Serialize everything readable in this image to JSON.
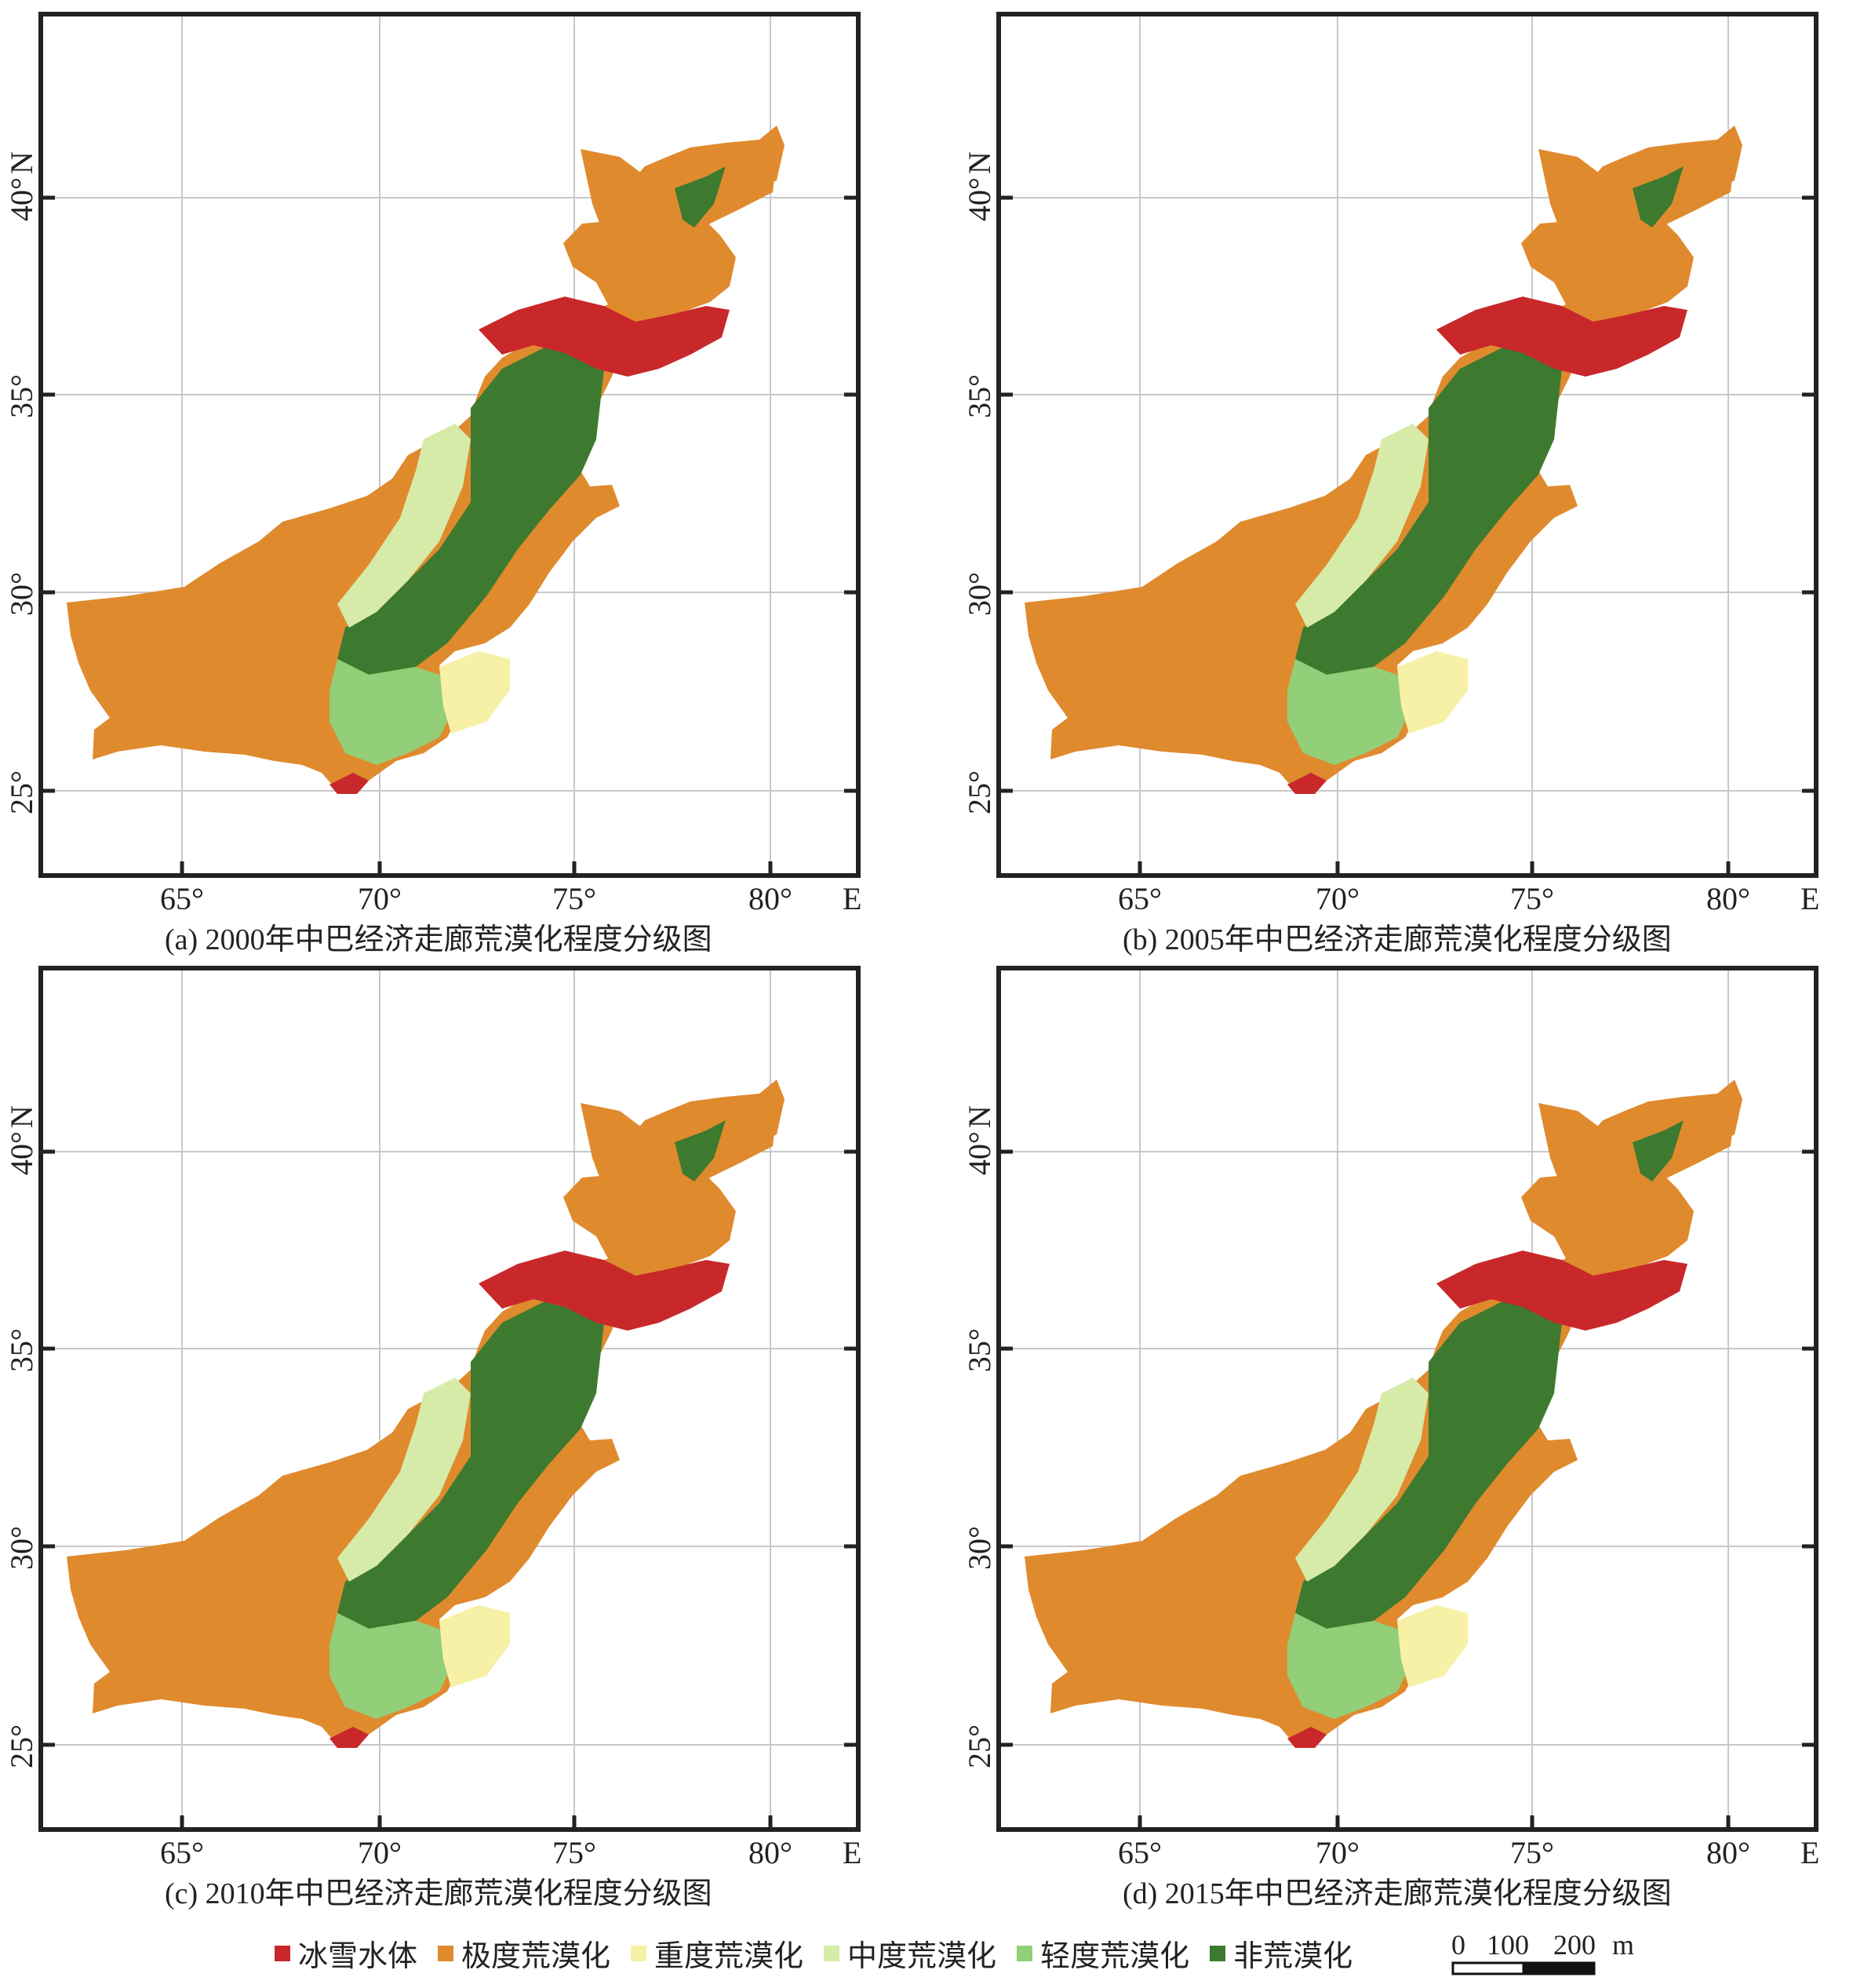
{
  "panels": [
    {
      "caption": "(a) 2000年中巴经济走廊荒漠化程度分级图"
    },
    {
      "caption": "(b) 2005年中巴经济走廊荒漠化程度分级图"
    },
    {
      "caption": "(c) 2010年中巴经济走廊荒漠化程度分级图"
    },
    {
      "caption": "(d) 2015年中巴经济走廊荒漠化程度分级图"
    }
  ],
  "axes": {
    "x_ticks": [
      "65°",
      "70°",
      "75°",
      "80°"
    ],
    "x_unit": "E",
    "y_ticks": [
      "25°",
      "30°",
      "35°",
      "40°"
    ],
    "y_unit": "N"
  },
  "legend": [
    {
      "label": "冰雪水体",
      "color": "#c8282a"
    },
    {
      "label": "极度荒漠化",
      "color": "#e08a2e"
    },
    {
      "label": "重度荒漠化",
      "color": "#f7f1a8"
    },
    {
      "label": "中度荒漠化",
      "color": "#d6eba8"
    },
    {
      "label": "轻度荒漠化",
      "color": "#93ce78"
    },
    {
      "label": "非荒漠化",
      "color": "#3d7a2f"
    }
  ],
  "scale": {
    "labels": [
      "0",
      "100",
      "200"
    ],
    "unit": "m"
  }
}
